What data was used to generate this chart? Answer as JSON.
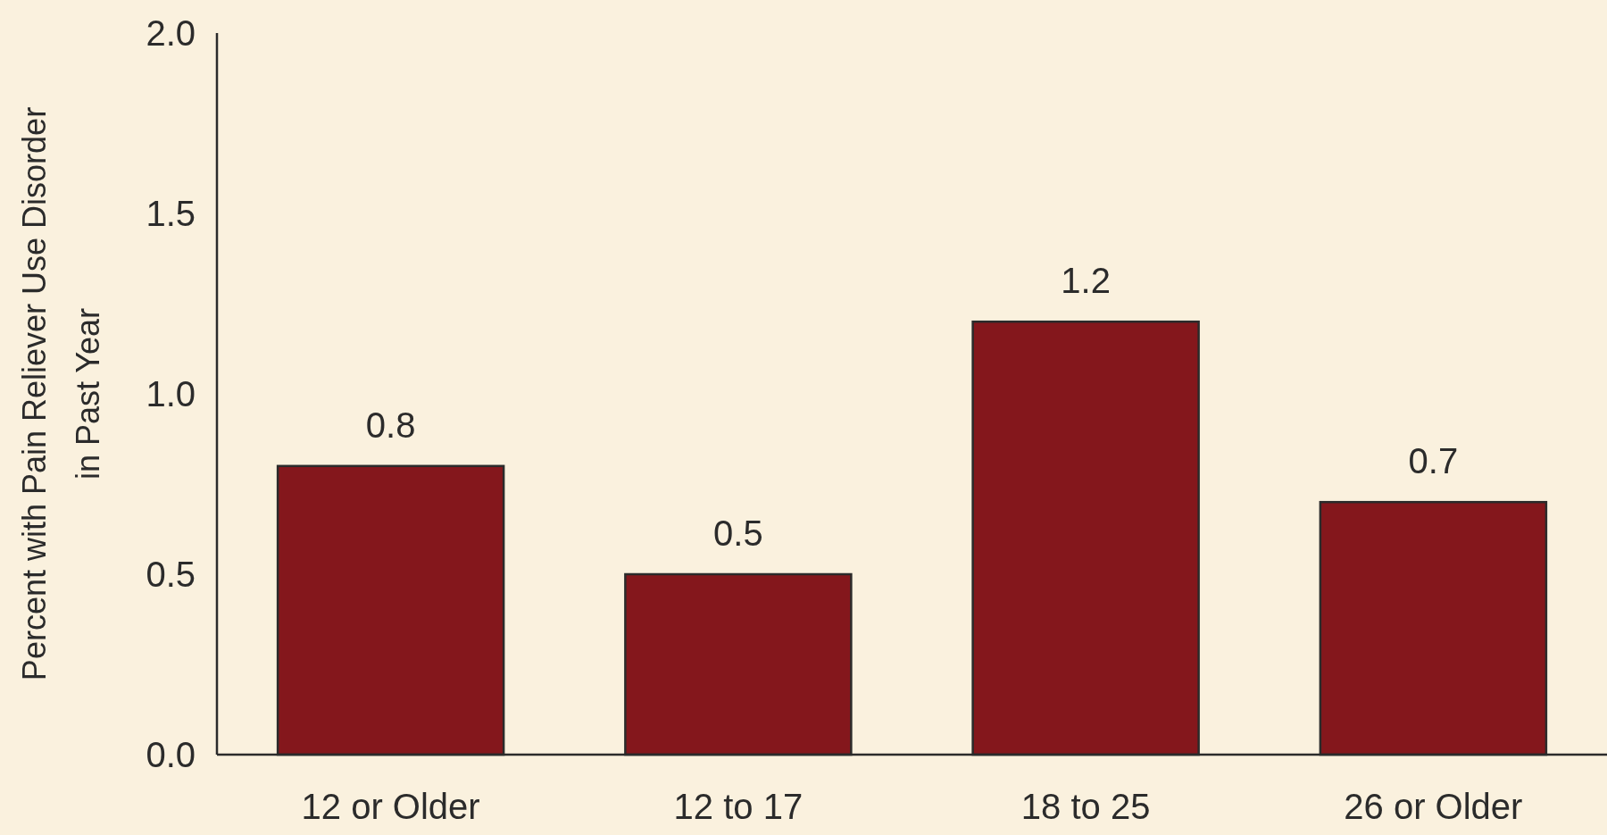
{
  "chart_data": {
    "type": "bar",
    "ylabel": "Percent with Pain Reliever Use Disorder\nin Past Year",
    "categories": [
      "12 or Older",
      "12 to 17",
      "18 to 25",
      "26 or Older"
    ],
    "values": [
      0.8,
      0.5,
      1.2,
      0.7
    ],
    "color": "#84171c",
    "ylim": [
      0,
      2
    ],
    "yticks": [
      {
        "value": 0,
        "label": "0.0"
      },
      {
        "value": 0.5,
        "label": "0.5"
      },
      {
        "value": 1,
        "label": "1.0"
      },
      {
        "value": 1.5,
        "label": "1.5"
      },
      {
        "value": 2,
        "label": "2.0"
      }
    ],
    "data_labels": true
  }
}
